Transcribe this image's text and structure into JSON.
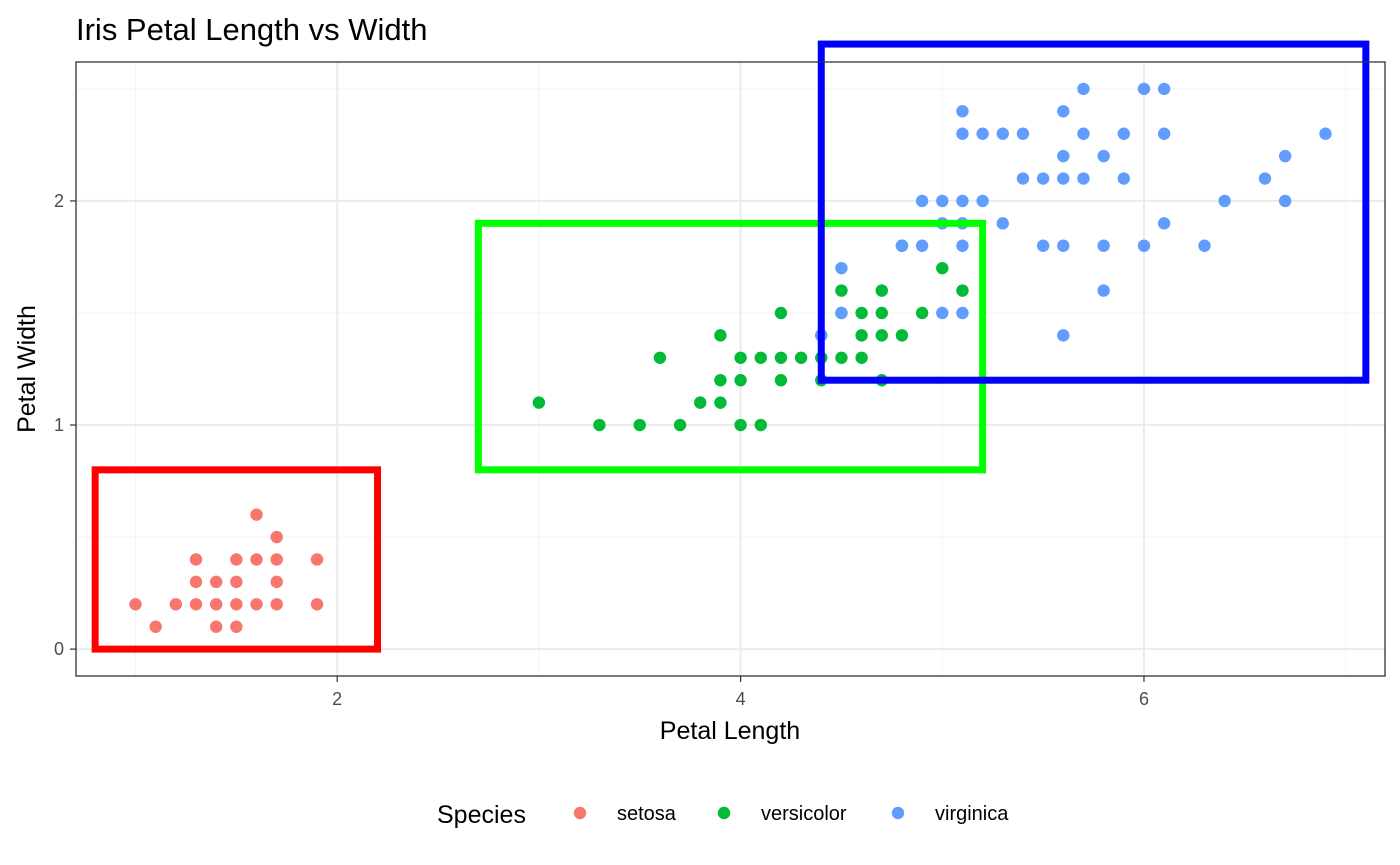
{
  "chart_data": {
    "type": "scatter",
    "title": "Iris Petal Length vs Width",
    "xlabel": "Petal Length",
    "ylabel": "Petal Width",
    "xlim": [
      0.705,
      7.195
    ],
    "ylim": [
      -0.12,
      2.62
    ],
    "xticks": [
      2,
      4,
      6
    ],
    "yticks": [
      0,
      1,
      2
    ],
    "grid": true,
    "legend": {
      "title": "Species",
      "position": "bottom"
    },
    "series": [
      {
        "name": "setosa",
        "color": "#F8766D",
        "points": [
          [
            1.0,
            0.2
          ],
          [
            1.1,
            0.1
          ],
          [
            1.2,
            0.2
          ],
          [
            1.3,
            0.2
          ],
          [
            1.3,
            0.3
          ],
          [
            1.3,
            0.4
          ],
          [
            1.4,
            0.1
          ],
          [
            1.4,
            0.2
          ],
          [
            1.4,
            0.3
          ],
          [
            1.5,
            0.1
          ],
          [
            1.5,
            0.2
          ],
          [
            1.5,
            0.3
          ],
          [
            1.5,
            0.4
          ],
          [
            1.6,
            0.2
          ],
          [
            1.6,
            0.4
          ],
          [
            1.6,
            0.6
          ],
          [
            1.7,
            0.2
          ],
          [
            1.7,
            0.3
          ],
          [
            1.7,
            0.4
          ],
          [
            1.7,
            0.5
          ],
          [
            1.9,
            0.2
          ],
          [
            1.9,
            0.4
          ]
        ]
      },
      {
        "name": "versicolor",
        "color": "#00BA38",
        "points": [
          [
            3.0,
            1.1
          ],
          [
            3.3,
            1.0
          ],
          [
            3.5,
            1.0
          ],
          [
            3.6,
            1.3
          ],
          [
            3.7,
            1.0
          ],
          [
            3.8,
            1.1
          ],
          [
            3.9,
            1.1
          ],
          [
            3.9,
            1.2
          ],
          [
            3.9,
            1.4
          ],
          [
            4.0,
            1.0
          ],
          [
            4.0,
            1.2
          ],
          [
            4.0,
            1.3
          ],
          [
            4.1,
            1.0
          ],
          [
            4.1,
            1.3
          ],
          [
            4.2,
            1.2
          ],
          [
            4.2,
            1.3
          ],
          [
            4.2,
            1.5
          ],
          [
            4.3,
            1.3
          ],
          [
            4.4,
            1.2
          ],
          [
            4.4,
            1.3
          ],
          [
            4.4,
            1.4
          ],
          [
            4.5,
            1.3
          ],
          [
            4.5,
            1.5
          ],
          [
            4.5,
            1.6
          ],
          [
            4.6,
            1.3
          ],
          [
            4.6,
            1.4
          ],
          [
            4.6,
            1.5
          ],
          [
            4.7,
            1.2
          ],
          [
            4.7,
            1.4
          ],
          [
            4.7,
            1.5
          ],
          [
            4.7,
            1.6
          ],
          [
            4.8,
            1.4
          ],
          [
            4.8,
            1.8
          ],
          [
            4.9,
            1.5
          ],
          [
            5.0,
            1.7
          ],
          [
            5.1,
            1.6
          ]
        ]
      },
      {
        "name": "virginica",
        "color": "#619CFF",
        "points": [
          [
            4.5,
            1.7
          ],
          [
            4.8,
            1.8
          ],
          [
            4.9,
            1.8
          ],
          [
            4.9,
            2.0
          ],
          [
            5.0,
            1.5
          ],
          [
            5.0,
            1.9
          ],
          [
            5.0,
            2.0
          ],
          [
            5.1,
            1.5
          ],
          [
            5.1,
            1.8
          ],
          [
            5.1,
            1.9
          ],
          [
            5.1,
            2.0
          ],
          [
            5.1,
            2.3
          ],
          [
            5.1,
            2.4
          ],
          [
            5.2,
            2.0
          ],
          [
            5.2,
            2.3
          ],
          [
            5.3,
            1.9
          ],
          [
            5.3,
            2.3
          ],
          [
            5.4,
            2.1
          ],
          [
            5.4,
            2.3
          ],
          [
            5.5,
            1.8
          ],
          [
            5.5,
            2.1
          ],
          [
            5.6,
            1.4
          ],
          [
            5.6,
            1.8
          ],
          [
            5.6,
            2.1
          ],
          [
            5.6,
            2.2
          ],
          [
            5.6,
            2.4
          ],
          [
            5.7,
            2.1
          ],
          [
            5.7,
            2.3
          ],
          [
            5.7,
            2.5
          ],
          [
            5.8,
            1.6
          ],
          [
            5.8,
            1.8
          ],
          [
            5.8,
            2.2
          ],
          [
            5.9,
            2.1
          ],
          [
            5.9,
            2.3
          ],
          [
            6.0,
            1.8
          ],
          [
            6.0,
            2.5
          ],
          [
            6.1,
            1.9
          ],
          [
            6.1,
            2.3
          ],
          [
            6.1,
            2.5
          ],
          [
            6.3,
            1.8
          ],
          [
            6.4,
            2.0
          ],
          [
            6.6,
            2.1
          ],
          [
            6.7,
            2.0
          ],
          [
            6.7,
            2.2
          ],
          [
            6.9,
            2.3
          ],
          [
            4.4,
            1.4
          ],
          [
            4.5,
            1.5
          ]
        ]
      }
    ],
    "annotations": [
      {
        "type": "rect",
        "color": "#FF0000",
        "x": [
          0.8,
          2.2
        ],
        "y": [
          0.0,
          0.8
        ]
      },
      {
        "type": "rect",
        "color": "#00FF00",
        "x": [
          2.7,
          5.2
        ],
        "y": [
          0.8,
          1.9
        ]
      },
      {
        "type": "rect",
        "color": "#0000FF",
        "x": [
          4.4,
          7.1
        ],
        "y": [
          1.2,
          2.7
        ]
      }
    ]
  }
}
